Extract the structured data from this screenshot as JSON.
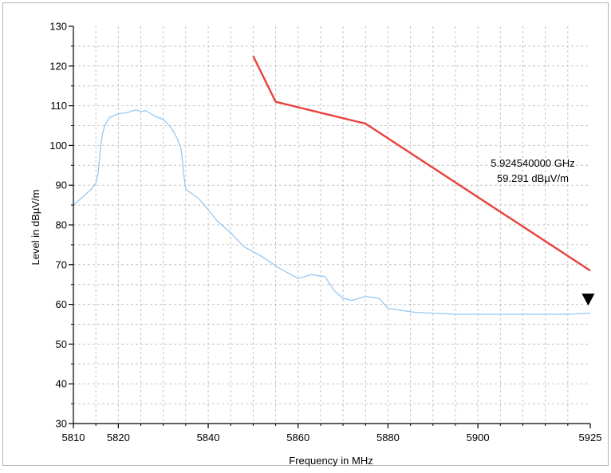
{
  "chart_data": {
    "type": "line",
    "title": "",
    "xlabel": "Frequency in MHz",
    "ylabel": "Level in dBµV/m",
    "xlim": [
      5810,
      5925
    ],
    "ylim": [
      30,
      130
    ],
    "x_ticks": [
      5810,
      5820,
      5840,
      5860,
      5880,
      5900,
      5925
    ],
    "y_ticks": [
      30,
      40,
      50,
      60,
      70,
      80,
      90,
      100,
      110,
      120,
      130
    ],
    "grid": true,
    "series": [
      {
        "name": "",
        "color": "#99c8f0",
        "x": [
          5810,
          5812,
          5814,
          5815,
          5815.5,
          5816,
          5816.5,
          5817,
          5818,
          5820,
          5822,
          5824,
          5825,
          5826,
          5828,
          5830,
          5831,
          5832,
          5833,
          5834,
          5834.5,
          5835,
          5838,
          5842,
          5845,
          5848,
          5852,
          5856,
          5860,
          5863,
          5866,
          5868,
          5870,
          5872,
          5875,
          5878,
          5880,
          5883,
          5886,
          5890,
          5895,
          5900,
          5905,
          5910,
          5915,
          5920,
          5925
        ],
        "y": [
          85,
          87,
          89,
          90.5,
          93,
          99,
          103,
          105,
          107,
          108,
          108.3,
          109,
          108.5,
          108.8,
          107.5,
          106.5,
          105.5,
          104,
          102,
          99,
          93,
          89,
          86.5,
          81,
          78,
          74.5,
          72,
          69,
          66.5,
          67.5,
          67,
          63.5,
          61.5,
          61,
          62,
          61.5,
          59,
          58.5,
          58,
          57.8,
          57.5,
          57.5,
          57.5,
          57.5,
          57.5,
          57.5,
          57.8
        ]
      },
      {
        "name": "",
        "color": "#e8413c",
        "x": [
          5850,
          5855,
          5875,
          5925
        ],
        "y": [
          122.5,
          111,
          105.5,
          68.5
        ]
      }
    ],
    "marker": {
      "x": 5924.54,
      "y": 59.291,
      "line1": "5.924540000 GHz",
      "line2": "59.291 dBµV/m"
    }
  }
}
